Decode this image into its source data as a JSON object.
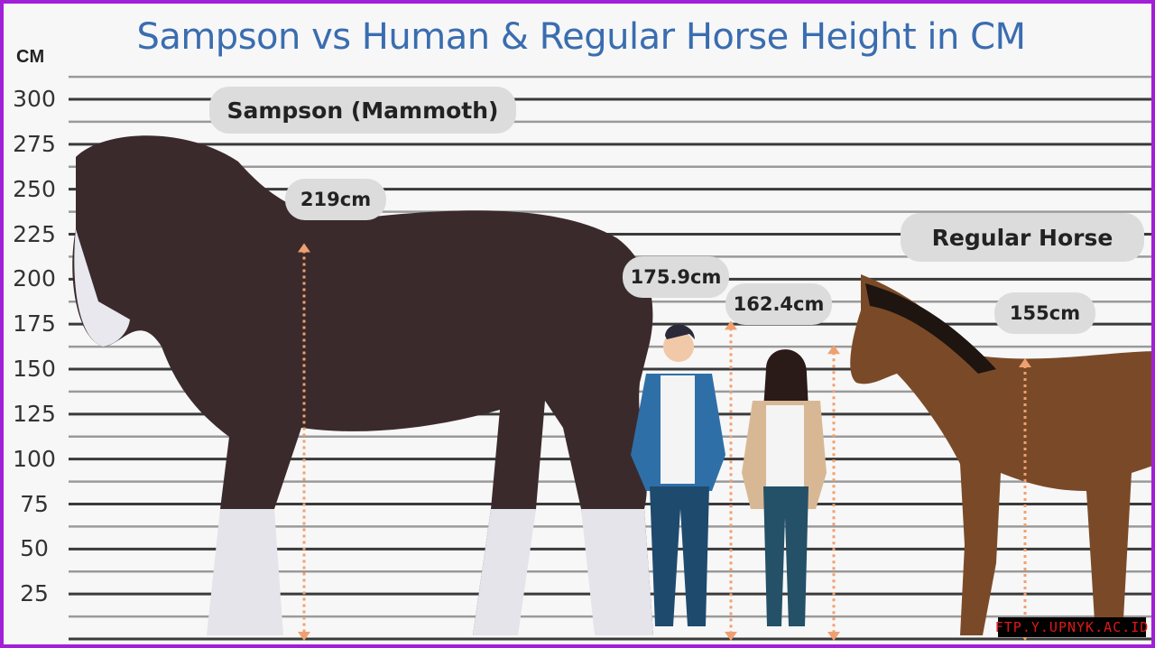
{
  "chart_data": {
    "type": "bar",
    "title": "Sampson vs Human & Regular Horse Height in CM",
    "ylabel": "CM",
    "ylim": [
      0,
      300
    ],
    "yticks": [
      25,
      50,
      75,
      100,
      125,
      150,
      175,
      200,
      225,
      250,
      275,
      300
    ],
    "grid": true,
    "categories": [
      "Sampson (Mammoth)",
      "Human (male)",
      "Human (female)",
      "Regular Horse"
    ],
    "values": [
      219,
      175.9,
      162.4,
      155
    ],
    "data_labels": [
      "219cm",
      "175.9cm",
      "162.4cm",
      "155cm"
    ],
    "colors": {
      "title": "#3a6db0",
      "arrow": "#f0a070",
      "sampson": "#3b2a2c",
      "regular_horse": "#7a4a28",
      "border": "#a21fd8"
    }
  },
  "labels": {
    "sampson": "Sampson (Mammoth)",
    "regular_horse": "Regular Horse"
  },
  "watermark": "FTP.Y.UPNYK.AC.ID"
}
